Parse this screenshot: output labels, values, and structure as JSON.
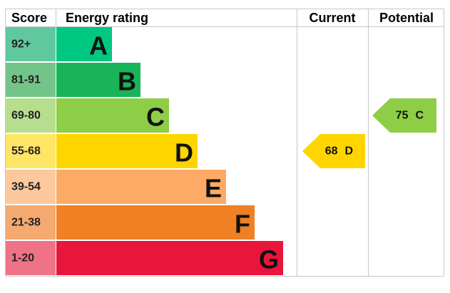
{
  "header": {
    "score": "Score",
    "energy_rating": "Energy rating",
    "current": "Current",
    "potential": "Potential"
  },
  "bands": [
    {
      "score": "92+",
      "letter": "A",
      "color": "#00c781",
      "score_color": "#5fc89e"
    },
    {
      "score": "81-91",
      "letter": "B",
      "color": "#19b459",
      "score_color": "#73c489"
    },
    {
      "score": "69-80",
      "letter": "C",
      "color": "#8dce46",
      "score_color": "#b7dd8e"
    },
    {
      "score": "55-68",
      "letter": "D",
      "color": "#ffd500",
      "score_color": "#ffe566"
    },
    {
      "score": "39-54",
      "letter": "E",
      "color": "#fcaa65",
      "score_color": "#fcc89c"
    },
    {
      "score": "21-38",
      "letter": "F",
      "color": "#ef8023",
      "score_color": "#f4a970"
    },
    {
      "score": "1-20",
      "letter": "G",
      "color": "#e9153b",
      "score_color": "#f07286"
    }
  ],
  "current": {
    "value": 68,
    "letter": "D"
  },
  "potential": {
    "value": 75,
    "letter": "C"
  }
}
